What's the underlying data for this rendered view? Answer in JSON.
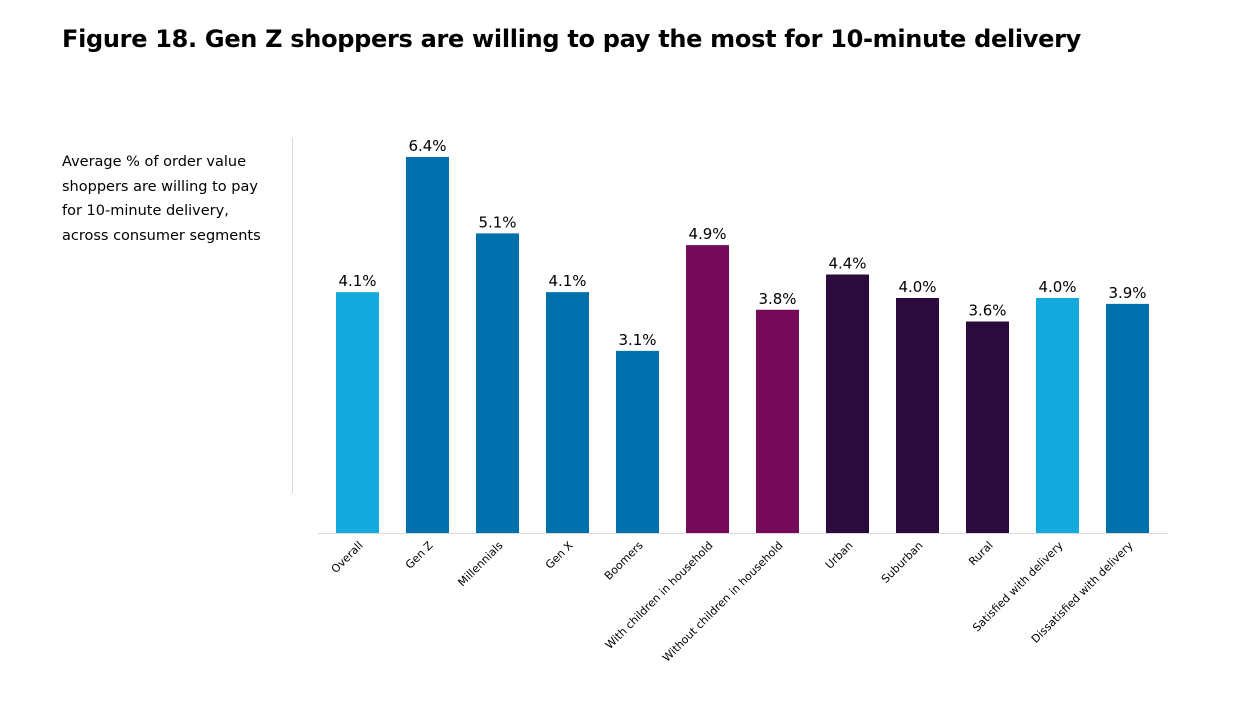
{
  "title": "Figure 18. Gen Z shoppers are willing to pay the most for 10-minute delivery",
  "subtitle": "Average % of order value shoppers are willing to pay for 10-minute delivery, across consumer segments",
  "colors": {
    "light_blue": "#14a9dc",
    "blue": "#0070ac",
    "purple": "#740a58",
    "dark_purple": "#2b0a3d",
    "axis": "#d9d9d9"
  },
  "chart_data": {
    "type": "bar",
    "title": "Figure 18. Gen Z shoppers are willing to pay the most for 10-minute delivery",
    "xlabel": "",
    "ylabel": "",
    "ylim": [
      0,
      7
    ],
    "grid": false,
    "categories": [
      "Overall",
      "Gen Z",
      "Millennials",
      "Gen X",
      "Boomers",
      "With children in household",
      "Without children in household",
      "Urban",
      "Suburban",
      "Rural",
      "Satisfied with delivery",
      "Dissatisfied with delivery"
    ],
    "values": [
      4.1,
      6.4,
      5.1,
      4.1,
      3.1,
      4.9,
      3.8,
      4.4,
      4.0,
      3.6,
      4.0,
      3.9
    ],
    "value_labels": [
      "4.1%",
      "6.4%",
      "5.1%",
      "4.1%",
      "3.1%",
      "4.9%",
      "3.8%",
      "4.4%",
      "4.0%",
      "3.6%",
      "4.0%",
      "3.9%"
    ],
    "bar_colors": [
      "#14a9dc",
      "#0070ac",
      "#0070ac",
      "#0070ac",
      "#0070ac",
      "#740a58",
      "#740a58",
      "#2b0a3d",
      "#2b0a3d",
      "#2b0a3d",
      "#14a9dc",
      "#0070ac"
    ]
  }
}
